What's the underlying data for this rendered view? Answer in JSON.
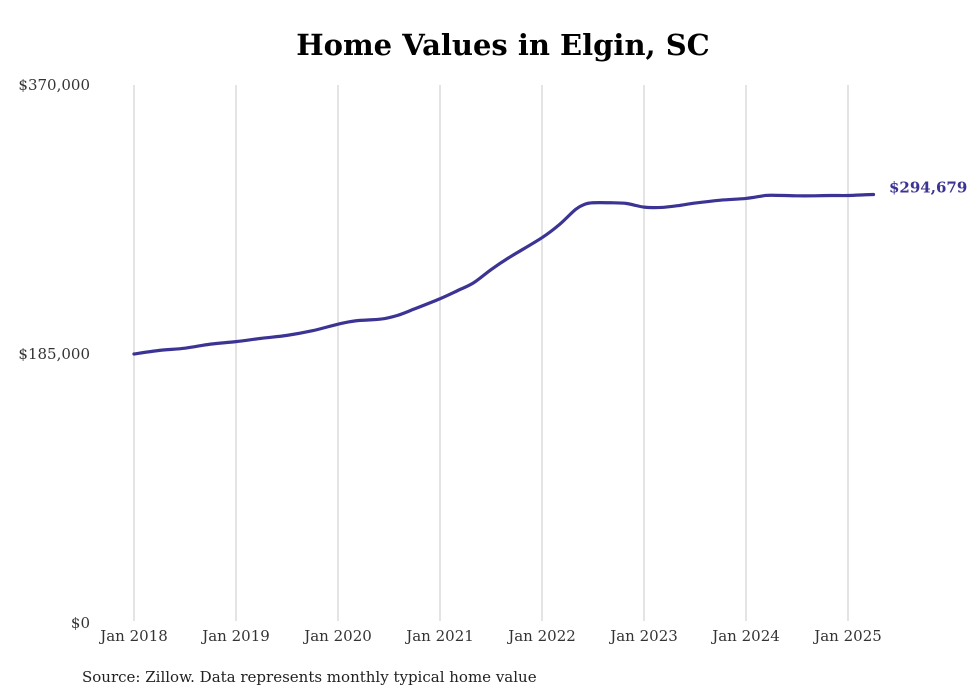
{
  "chart_data": {
    "type": "line",
    "title": "Home Values in Elgin, SC",
    "xlabel": "",
    "ylabel": "",
    "ylim": [
      0,
      370000
    ],
    "y_ticks": [
      {
        "value": 0,
        "label": "$0"
      },
      {
        "value": 185000,
        "label": "$185,000"
      },
      {
        "value": 370000,
        "label": "$370,000"
      }
    ],
    "x_ticks": [
      {
        "value": 2018.0,
        "label": "Jan 2018"
      },
      {
        "value": 2019.0,
        "label": "Jan 2019"
      },
      {
        "value": 2020.0,
        "label": "Jan 2020"
      },
      {
        "value": 2021.0,
        "label": "Jan 2021"
      },
      {
        "value": 2022.0,
        "label": "Jan 2022"
      },
      {
        "value": 2023.0,
        "label": "Jan 2023"
      },
      {
        "value": 2024.0,
        "label": "Jan 2024"
      },
      {
        "value": 2025.0,
        "label": "Jan 2025"
      }
    ],
    "xlim": [
      2018.0,
      2025.25
    ],
    "grid": {
      "vertical": true,
      "horizontal": false
    },
    "color": "#3b3494",
    "series": [
      {
        "name": "",
        "x": [
          2018.0,
          2018.25,
          2018.5,
          2018.75,
          2019.0,
          2019.25,
          2019.5,
          2019.75,
          2020.0,
          2020.17,
          2020.42,
          2020.58,
          2020.75,
          2021.0,
          2021.17,
          2021.33,
          2021.5,
          2021.67,
          2022.0,
          2022.17,
          2022.33,
          2022.42,
          2022.5,
          2022.67,
          2022.83,
          2023.0,
          2023.17,
          2023.33,
          2023.5,
          2023.75,
          2024.0,
          2024.17,
          2024.25,
          2024.5,
          2024.67,
          2024.83,
          2025.0,
          2025.17,
          2025.25
        ],
        "y": [
          185000,
          187500,
          189000,
          191800,
          193500,
          195800,
          197800,
          201000,
          205500,
          207800,
          209000,
          211500,
          216000,
          223000,
          228500,
          234000,
          243000,
          251000,
          265000,
          274000,
          284500,
          288000,
          289000,
          289000,
          288500,
          286000,
          285800,
          287000,
          288800,
          290800,
          292000,
          293800,
          294200,
          293800,
          293800,
          294000,
          294000,
          294500,
          294679
        ]
      }
    ],
    "end_label": "$294,679",
    "source": "Source: Zillow. Data represents monthly typical home value"
  }
}
